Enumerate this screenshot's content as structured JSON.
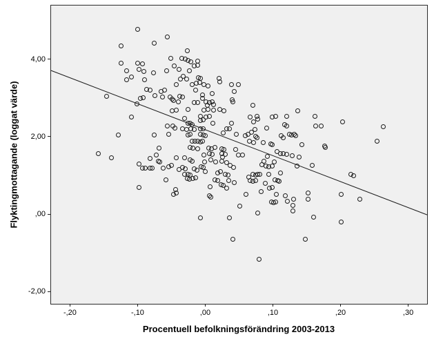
{
  "chart": {
    "background": "#ffffff",
    "plot_background": "#f0f0f0",
    "frame_color": "#2a2a2a",
    "marker_color": "#1c1c1c",
    "line_color": "#1c1c1c"
  },
  "chart_data": {
    "type": "scatter",
    "title": "",
    "xlabel": "Procentuell befolkningsförändring 2003-2013",
    "ylabel": "Flyktingmottagande (loggat värde)",
    "legend": "none",
    "grid": false,
    "x_range": [
      -0.228,
      0.328
    ],
    "y_range": [
      -2.32,
      5.39
    ],
    "x_ticks": {
      "values": [
        -0.2,
        -0.1,
        0.0,
        0.1,
        0.2,
        0.3
      ],
      "labels": [
        "-,20",
        "-,10",
        ",00",
        ",10",
        ",20",
        ",30"
      ]
    },
    "y_ticks": {
      "values": [
        4,
        2,
        0,
        -2
      ],
      "labels": [
        "4,00",
        "2,00",
        ",00",
        "-2,00"
      ]
    },
    "regression_line": {
      "x1": -0.228,
      "y1": 3.71,
      "x2": 0.328,
      "y2": -0.02
    },
    "points": [
      [
        -0.1,
        4.77
      ],
      [
        -0.056,
        4.57
      ],
      [
        -0.124,
        4.34
      ],
      [
        -0.075,
        4.41
      ],
      [
        -0.051,
        4.02
      ],
      [
        -0.124,
        3.9
      ],
      [
        -0.1,
        3.9
      ],
      [
        -0.093,
        3.88
      ],
      [
        -0.098,
        3.74
      ],
      [
        -0.091,
        3.69
      ],
      [
        -0.116,
        3.7
      ],
      [
        -0.109,
        3.54
      ],
      [
        -0.116,
        3.47
      ],
      [
        -0.09,
        3.47
      ],
      [
        -0.076,
        3.65
      ],
      [
        -0.057,
        3.7
      ],
      [
        -0.046,
        3.83
      ],
      [
        -0.146,
        3.05
      ],
      [
        -0.101,
        2.85
      ],
      [
        -0.096,
        2.99
      ],
      [
        -0.092,
        3.01
      ],
      [
        -0.087,
        3.22
      ],
      [
        -0.082,
        3.21
      ],
      [
        -0.074,
        3.06
      ],
      [
        -0.065,
        3.17
      ],
      [
        -0.06,
        3.21
      ],
      [
        -0.063,
        3.03
      ],
      [
        -0.052,
        3.03
      ],
      [
        -0.049,
        2.98
      ],
      [
        -0.047,
        2.94
      ],
      [
        -0.043,
        3.35
      ],
      [
        -0.027,
        4.22
      ],
      [
        -0.035,
        4.02
      ],
      [
        -0.03,
        4.01
      ],
      [
        -0.026,
        3.97
      ],
      [
        -0.021,
        3.93
      ],
      [
        -0.011,
        3.95
      ],
      [
        -0.016,
        3.83
      ],
      [
        -0.011,
        3.85
      ],
      [
        -0.039,
        3.74
      ],
      [
        -0.023,
        3.7
      ],
      [
        -0.033,
        3.56
      ],
      [
        -0.037,
        3.49
      ],
      [
        -0.028,
        3.49
      ],
      [
        -0.01,
        3.53
      ],
      [
        -0.007,
        3.51
      ],
      [
        -0.019,
        3.35
      ],
      [
        -0.013,
        3.38
      ],
      [
        -0.008,
        3.4
      ],
      [
        -0.002,
        3.35
      ],
      [
        0.004,
        3.31
      ],
      [
        0.02,
        3.51
      ],
      [
        0.021,
        3.42
      ],
      [
        -0.014,
        3.21
      ],
      [
        0.039,
        3.35
      ],
      [
        0.049,
        3.35
      ],
      [
        0.043,
        3.17
      ],
      [
        0.01,
        3.12
      ],
      [
        -0.004,
        3.08
      ],
      [
        -0.004,
        2.99
      ],
      [
        -0.038,
        3.05
      ],
      [
        -0.034,
        3.03
      ],
      [
        -0.04,
        2.9
      ],
      [
        -0.016,
        2.89
      ],
      [
        -0.011,
        2.89
      ],
      [
        0.001,
        2.9
      ],
      [
        0.006,
        2.89
      ],
      [
        0.01,
        2.9
      ],
      [
        0.012,
        2.83
      ],
      [
        0.003,
        2.82
      ],
      [
        0.04,
        2.96
      ],
      [
        0.041,
        2.9
      ],
      [
        0.07,
        2.82
      ],
      [
        -0.109,
        2.51
      ],
      [
        -0.049,
        2.67
      ],
      [
        -0.043,
        2.69
      ],
      [
        -0.056,
        2.27
      ],
      [
        -0.048,
        2.28
      ],
      [
        -0.045,
        2.23
      ],
      [
        -0.129,
        2.04
      ],
      [
        -0.075,
        2.05
      ],
      [
        -0.054,
        2.07
      ],
      [
        -0.158,
        1.56
      ],
      [
        -0.139,
        1.45
      ],
      [
        -0.068,
        1.7
      ],
      [
        -0.072,
        1.52
      ],
      [
        -0.082,
        1.43
      ],
      [
        -0.069,
        1.36
      ],
      [
        -0.067,
        1.34
      ],
      [
        -0.098,
        1.29
      ],
      [
        -0.093,
        1.18
      ],
      [
        -0.089,
        1.18
      ],
      [
        -0.082,
        1.18
      ],
      [
        -0.079,
        1.18
      ],
      [
        -0.062,
        1.18
      ],
      [
        -0.054,
        1.22
      ],
      [
        -0.05,
        1.25
      ],
      [
        -0.043,
        1.45
      ],
      [
        -0.058,
        0.88
      ],
      [
        -0.098,
        0.69
      ],
      [
        -0.044,
        0.63
      ],
      [
        -0.047,
        0.51
      ],
      [
        -0.043,
        0.54
      ],
      [
        -0.025,
        2.71
      ],
      [
        -0.002,
        2.69
      ],
      [
        0.004,
        2.71
      ],
      [
        0.012,
        2.69
      ],
      [
        0.021,
        2.71
      ],
      [
        0.028,
        2.67
      ],
      [
        -0.007,
        2.53
      ],
      [
        0.001,
        2.51
      ],
      [
        0.006,
        2.53
      ],
      [
        -0.031,
        2.48
      ],
      [
        -0.026,
        2.35
      ],
      [
        -0.022,
        2.35
      ],
      [
        -0.019,
        2.32
      ],
      [
        -0.007,
        2.41
      ],
      [
        -0.003,
        2.43
      ],
      [
        0.011,
        2.34
      ],
      [
        0.039,
        2.35
      ],
      [
        -0.034,
        2.2
      ],
      [
        -0.028,
        2.18
      ],
      [
        -0.021,
        2.2
      ],
      [
        -0.016,
        2.18
      ],
      [
        -0.007,
        2.21
      ],
      [
        -0.003,
        2.2
      ],
      [
        0.032,
        2.21
      ],
      [
        0.036,
        2.2
      ],
      [
        0.046,
        2.07
      ],
      [
        -0.026,
        2.05
      ],
      [
        -0.022,
        2.07
      ],
      [
        -0.007,
        2.07
      ],
      [
        -0.003,
        2.04
      ],
      [
        0.0,
        2.02
      ],
      [
        0.027,
        2.09
      ],
      [
        -0.019,
        1.89
      ],
      [
        -0.015,
        1.88
      ],
      [
        -0.011,
        1.89
      ],
      [
        -0.007,
        1.86
      ],
      [
        -0.004,
        1.89
      ],
      [
        0.005,
        1.7
      ],
      [
        0.009,
        1.68
      ],
      [
        0.014,
        1.72
      ],
      [
        -0.022,
        1.72
      ],
      [
        -0.018,
        1.7
      ],
      [
        -0.011,
        1.68
      ],
      [
        0.024,
        1.68
      ],
      [
        0.028,
        1.66
      ],
      [
        0.045,
        1.66
      ],
      [
        -0.002,
        1.52
      ],
      [
        0.006,
        1.56
      ],
      [
        0.01,
        1.54
      ],
      [
        0.025,
        1.56
      ],
      [
        0.03,
        1.54
      ],
      [
        0.026,
        1.47
      ],
      [
        -0.031,
        1.45
      ],
      [
        0.049,
        1.52
      ],
      [
        0.137,
        2.67
      ],
      [
        0.066,
        2.51
      ],
      [
        0.077,
        2.53
      ],
      [
        0.078,
        2.46
      ],
      [
        0.071,
        2.39
      ],
      [
        0.099,
        2.51
      ],
      [
        0.104,
        2.53
      ],
      [
        0.12,
        2.53
      ],
      [
        0.091,
        2.23
      ],
      [
        0.117,
        2.32
      ],
      [
        0.12,
        2.27
      ],
      [
        0.073,
        2.18
      ],
      [
        0.068,
        2.11
      ],
      [
        0.063,
        2.07
      ],
      [
        0.059,
        2.02
      ],
      [
        0.074,
        2.0
      ],
      [
        0.077,
        1.98
      ],
      [
        0.071,
        1.84
      ],
      [
        0.065,
        1.88
      ],
      [
        0.112,
        2.02
      ],
      [
        0.115,
        1.98
      ],
      [
        0.124,
        2.07
      ],
      [
        0.128,
        2.04
      ],
      [
        0.132,
        2.07
      ],
      [
        0.134,
        2.02
      ],
      [
        0.086,
        1.84
      ],
      [
        0.097,
        1.82
      ],
      [
        0.099,
        1.8
      ],
      [
        0.143,
        1.8
      ],
      [
        0.106,
        1.61
      ],
      [
        0.111,
        1.57
      ],
      [
        0.115,
        1.56
      ],
      [
        0.12,
        1.54
      ],
      [
        0.092,
        1.49
      ],
      [
        0.129,
        1.5
      ],
      [
        0.139,
        1.47
      ],
      [
        0.055,
        1.52
      ],
      [
        -0.022,
        1.4
      ],
      [
        -0.019,
        1.36
      ],
      [
        -0.001,
        1.34
      ],
      [
        0.008,
        1.4
      ],
      [
        0.015,
        1.34
      ],
      [
        0.024,
        1.36
      ],
      [
        0.032,
        1.33
      ],
      [
        0.037,
        1.25
      ],
      [
        0.042,
        1.2
      ],
      [
        -0.006,
        1.22
      ],
      [
        -0.003,
        1.2
      ],
      [
        -0.034,
        1.2
      ],
      [
        -0.03,
        1.17
      ],
      [
        -0.039,
        1.15
      ],
      [
        -0.016,
        1.17
      ],
      [
        -0.012,
        1.13
      ],
      [
        0.0,
        1.1
      ],
      [
        -0.031,
        1.02
      ],
      [
        -0.026,
        1.02
      ],
      [
        -0.022,
        1.01
      ],
      [
        -0.027,
        0.92
      ],
      [
        -0.023,
        0.9
      ],
      [
        -0.018,
        0.92
      ],
      [
        -0.014,
        0.94
      ],
      [
        0.018,
        1.06
      ],
      [
        0.022,
        1.1
      ],
      [
        0.03,
        1.02
      ],
      [
        0.034,
        1.01
      ],
      [
        0.014,
        0.88
      ],
      [
        0.018,
        0.86
      ],
      [
        0.035,
        0.86
      ],
      [
        0.043,
        0.81
      ],
      [
        0.007,
        0.7
      ],
      [
        0.023,
        0.76
      ],
      [
        0.027,
        0.74
      ],
      [
        0.032,
        0.67
      ],
      [
        0.006,
        0.47
      ],
      [
        0.008,
        0.44
      ],
      [
        0.051,
        0.21
      ],
      [
        0.087,
        1.36
      ],
      [
        0.084,
        1.27
      ],
      [
        0.09,
        1.24
      ],
      [
        0.094,
        1.22
      ],
      [
        0.099,
        1.24
      ],
      [
        0.102,
        1.34
      ],
      [
        0.136,
        1.24
      ],
      [
        0.07,
        1.02
      ],
      [
        0.074,
        1.01
      ],
      [
        0.078,
        1.02
      ],
      [
        0.081,
        1.02
      ],
      [
        0.066,
        0.86
      ],
      [
        0.07,
        0.85
      ],
      [
        0.074,
        0.86
      ],
      [
        0.064,
        0.95
      ],
      [
        0.094,
        1.02
      ],
      [
        0.111,
        1.06
      ],
      [
        0.103,
        0.88
      ],
      [
        0.107,
        0.86
      ],
      [
        0.109,
        0.85
      ],
      [
        0.089,
        0.79
      ],
      [
        0.095,
        0.67
      ],
      [
        0.099,
        0.69
      ],
      [
        0.083,
        0.58
      ],
      [
        0.105,
        0.51
      ],
      [
        0.06,
        0.51
      ],
      [
        0.118,
        0.47
      ],
      [
        0.121,
        0.33
      ],
      [
        0.131,
        0.39
      ],
      [
        0.098,
        0.31
      ],
      [
        0.101,
        0.3
      ],
      [
        0.104,
        0.31
      ],
      [
        0.13,
        0.23
      ],
      [
        0.162,
        2.53
      ],
      [
        0.163,
        2.28
      ],
      [
        0.171,
        2.28
      ],
      [
        0.203,
        2.39
      ],
      [
        0.263,
        2.25
      ],
      [
        0.254,
        1.88
      ],
      [
        0.176,
        1.75
      ],
      [
        0.178,
        1.72
      ],
      [
        0.158,
        1.25
      ],
      [
        0.215,
        1.02
      ],
      [
        0.219,
        0.99
      ],
      [
        0.152,
        0.54
      ],
      [
        0.152,
        0.39
      ],
      [
        0.201,
        0.51
      ],
      [
        0.229,
        0.39
      ],
      [
        -0.007,
        -0.09
      ],
      [
        0.036,
        -0.09
      ],
      [
        0.078,
        0.03
      ],
      [
        0.13,
        0.08
      ],
      [
        0.041,
        -0.66
      ],
      [
        0.08,
        -1.16
      ],
      [
        0.16,
        -0.08
      ],
      [
        0.201,
        -0.2
      ],
      [
        0.148,
        -0.66
      ]
    ]
  }
}
